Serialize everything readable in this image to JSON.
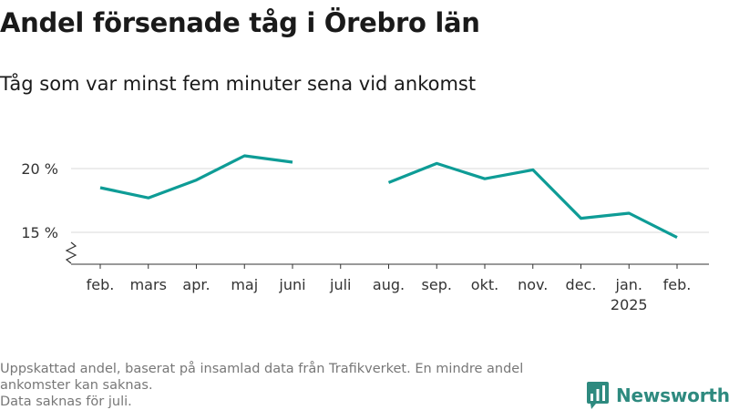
{
  "chart_data": {
    "type": "line",
    "title": "Andel försenade tåg i Örebro län",
    "subtitle": "Tåg som var minst fem minuter sena vid ankomst",
    "x": [
      "feb.",
      "mars",
      "apr.",
      "maj",
      "juni",
      "juli",
      "aug.",
      "sep.",
      "okt.",
      "nov.",
      "dec.",
      "jan.",
      "feb."
    ],
    "x_sublabels": [
      "",
      "",
      "",
      "",
      "",
      "",
      "",
      "",
      "",
      "",
      "",
      "2025",
      ""
    ],
    "series": [
      {
        "color": "#0e9c96",
        "values": [
          18.5,
          17.7,
          19.1,
          21.0,
          20.5,
          null,
          18.9,
          20.4,
          19.2,
          19.9,
          16.1,
          16.5,
          14.6
        ]
      }
    ],
    "yticks": [
      15,
      20
    ],
    "ytick_labels": [
      "15 %",
      "20 %"
    ],
    "ylim": [
      12.5,
      22.5
    ],
    "y_axis_break": true,
    "grid": true
  },
  "footnote": {
    "line1": "Uppskattad andel, baserat på insamlad data från Trafikverket. En mindre andel ankomster kan saknas.",
    "line2": "Data saknas för juli."
  },
  "brand": {
    "name": "Newsworthy",
    "icon": "newsworthy-logo-icon",
    "color": "#2e8a7f"
  }
}
